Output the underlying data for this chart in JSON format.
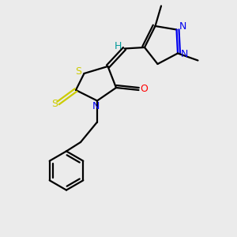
{
  "bg_color": "#ebebeb",
  "atom_colors": {
    "S": "#cccc00",
    "N": "#0000ee",
    "O": "#ff0000",
    "C": "#000000",
    "H": "#009999"
  },
  "figsize": [
    3.0,
    3.0
  ],
  "dpi": 100
}
